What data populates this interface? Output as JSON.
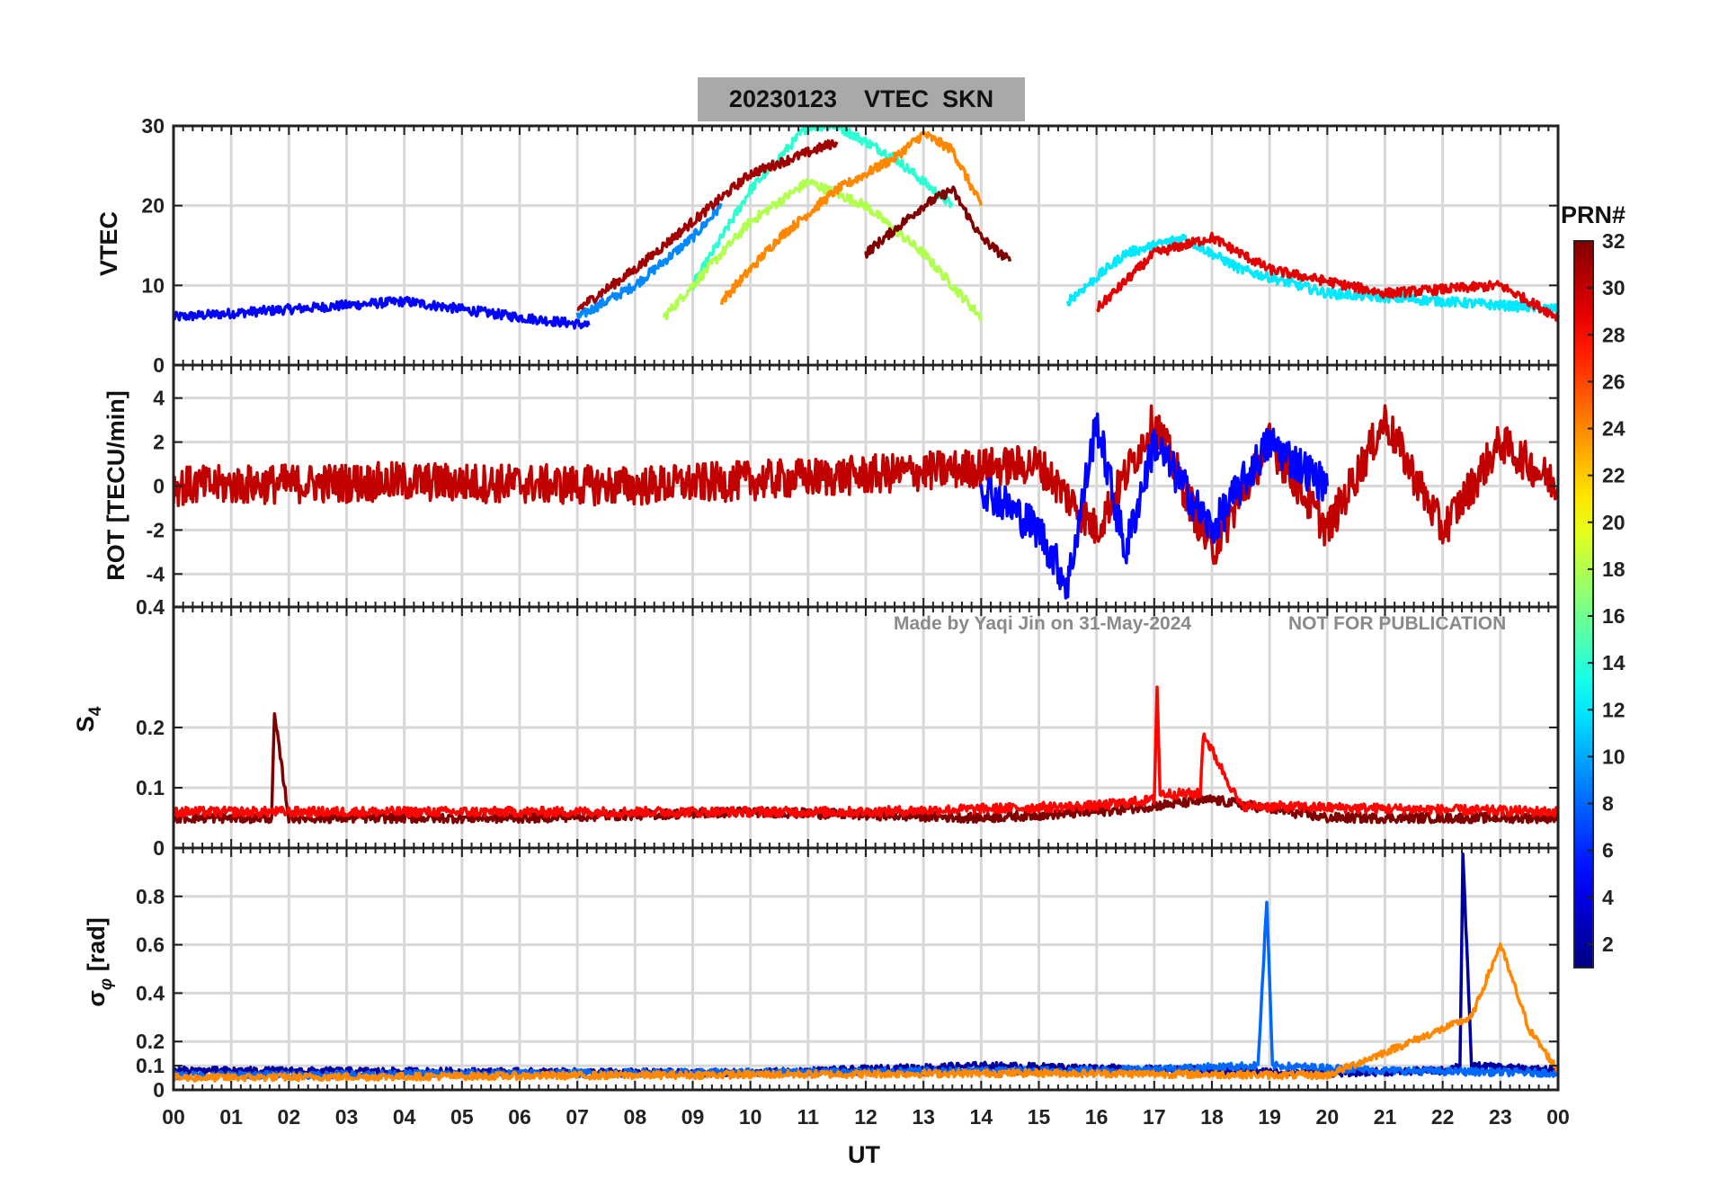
{
  "chart_data": [
    {
      "type": "line",
      "panel": "vtec",
      "title": "20230123    VTEC  SKN",
      "xlabel": "UT",
      "ylabel": "VTEC",
      "xlim": [
        0,
        24
      ],
      "ylim": [
        0,
        30
      ],
      "yticks": [
        0,
        10,
        20,
        30
      ],
      "ytick_labels": [
        "0",
        "10",
        "20",
        "30"
      ],
      "grid": true,
      "series": [
        {
          "prn": 5,
          "x": [
            0,
            1,
            2,
            3,
            4,
            5,
            6,
            7.2
          ],
          "y": [
            6,
            6.5,
            7,
            7.5,
            8,
            7,
            6,
            5
          ]
        },
        {
          "prn": 9,
          "x": [
            7,
            8,
            9,
            9.5
          ],
          "y": [
            6,
            10,
            16,
            20
          ]
        },
        {
          "prn": 14,
          "x": [
            9,
            10,
            11,
            11.5,
            12.5,
            13.5
          ],
          "y": [
            10,
            22,
            30,
            30,
            26,
            20
          ]
        },
        {
          "prn": 18,
          "x": [
            8.5,
            10,
            11,
            12,
            13,
            14
          ],
          "y": [
            6,
            18,
            23,
            20,
            14,
            6
          ]
        },
        {
          "prn": 24,
          "x": [
            9.5,
            10.5,
            11.5,
            12.5,
            13,
            13.5,
            14
          ],
          "y": [
            8,
            16,
            22,
            26,
            29,
            27,
            20
          ]
        },
        {
          "prn": 31,
          "x": [
            7,
            8,
            9,
            10,
            11.5
          ],
          "y": [
            7,
            12,
            18,
            24,
            28
          ]
        },
        {
          "prn": 32,
          "x": [
            12,
            13,
            13.5,
            14,
            14.5
          ],
          "y": [
            14,
            20,
            22,
            16,
            13
          ]
        },
        {
          "prn": 12,
          "x": [
            15.5,
            16.5,
            17.5,
            18.5,
            20,
            22,
            24
          ],
          "y": [
            8,
            14,
            16,
            12,
            9,
            8,
            7
          ]
        },
        {
          "prn": 29,
          "x": [
            16,
            17,
            18,
            19,
            21,
            23,
            24
          ],
          "y": [
            7,
            14,
            16,
            12,
            9,
            10,
            6
          ]
        }
      ]
    },
    {
      "type": "line",
      "panel": "rot",
      "ylabel": "ROT [TECU/min]",
      "xlim": [
        0,
        24
      ],
      "ylim": [
        -5.5,
        5.5
      ],
      "yticks": [
        -4,
        -2,
        0,
        2,
        4
      ],
      "ytick_labels": [
        "-4",
        "-2",
        "0",
        "2",
        "4"
      ],
      "grid": true,
      "series": [
        {
          "prn": 30,
          "x": [
            0,
            4,
            8,
            12,
            15,
            16,
            17,
            18,
            19,
            20,
            21,
            22,
            23,
            24
          ],
          "y": [
            0,
            0.2,
            0,
            0.5,
            1,
            -2,
            3,
            -3,
            2,
            -2,
            3,
            -2,
            2,
            0
          ]
        },
        {
          "prn": 5,
          "x": [
            14,
            15,
            15.5,
            16,
            16.5,
            17,
            18,
            19,
            20
          ],
          "y": [
            0,
            -2,
            -4.5,
            3,
            -3,
            2,
            -2,
            2,
            0
          ]
        }
      ]
    },
    {
      "type": "line",
      "panel": "s4",
      "ylabel": "S4",
      "xlim": [
        0,
        24
      ],
      "ylim": [
        0,
        0.4
      ],
      "yticks": [
        0,
        0.1,
        0.2,
        0.4
      ],
      "ytick_labels": [
        "0",
        "0.1",
        "0.2",
        "0.4"
      ],
      "grid": true,
      "series": [
        {
          "prn": 32,
          "x": [
            0,
            1.5,
            1.7,
            1.75,
            2,
            6,
            10,
            14,
            16,
            18,
            20,
            22,
            24
          ],
          "y": [
            0.05,
            0.05,
            0.05,
            0.22,
            0.05,
            0.05,
            0.06,
            0.05,
            0.06,
            0.08,
            0.05,
            0.05,
            0.05
          ]
        },
        {
          "prn": 28,
          "x": [
            0,
            6,
            12,
            16,
            17,
            17.05,
            17.1,
            17.8,
            17.85,
            18.5,
            24
          ],
          "y": [
            0.06,
            0.06,
            0.06,
            0.07,
            0.08,
            0.27,
            0.09,
            0.09,
            0.19,
            0.07,
            0.06
          ]
        }
      ],
      "annotations": [
        "Made by Yaqi Jin on 31-May-2024",
        "NOT FOR PUBLICATION"
      ]
    },
    {
      "type": "line",
      "panel": "sigma_phi",
      "ylabel": "σ_φ [rad]",
      "xlim": [
        0,
        24
      ],
      "ylim": [
        0,
        1
      ],
      "yticks": [
        0,
        0.1,
        0.2,
        0.4,
        0.6,
        0.8
      ],
      "ytick_labels": [
        "0",
        "0.1",
        "0.2",
        "0.4",
        "0.6",
        "0.8"
      ],
      "xticks": [
        0,
        1,
        2,
        3,
        4,
        5,
        6,
        7,
        8,
        9,
        10,
        11,
        12,
        13,
        14,
        15,
        16,
        17,
        18,
        19,
        20,
        21,
        22,
        23,
        24
      ],
      "xtick_labels": [
        "00",
        "01",
        "02",
        "03",
        "04",
        "05",
        "06",
        "07",
        "08",
        "09",
        "10",
        "11",
        "12",
        "13",
        "14",
        "15",
        "16",
        "17",
        "18",
        "19",
        "20",
        "21",
        "22",
        "23",
        "00"
      ],
      "grid": true,
      "series": [
        {
          "prn": 2,
          "x": [
            0,
            10,
            14,
            20,
            22,
            22.3,
            22.35,
            22.5,
            24
          ],
          "y": [
            0.08,
            0.07,
            0.1,
            0.07,
            0.08,
            0.1,
            0.98,
            0.1,
            0.08
          ]
        },
        {
          "prn": 8,
          "x": [
            0,
            16,
            18.8,
            18.95,
            19.05,
            21,
            24
          ],
          "y": [
            0.06,
            0.08,
            0.1,
            0.78,
            0.1,
            0.08,
            0.07
          ]
        },
        {
          "prn": 24,
          "x": [
            0,
            15,
            20,
            22.5,
            23,
            23.5,
            24
          ],
          "y": [
            0.05,
            0.07,
            0.06,
            0.3,
            0.6,
            0.25,
            0.08
          ]
        }
      ]
    }
  ],
  "colorbar": {
    "label": "PRN#",
    "range": [
      1,
      32
    ],
    "ticks": [
      2,
      4,
      6,
      8,
      10,
      12,
      14,
      16,
      18,
      20,
      22,
      24,
      26,
      28,
      30,
      32
    ],
    "tick_labels": [
      "2",
      "4",
      "6",
      "8",
      "10",
      "12",
      "14",
      "16",
      "18",
      "20",
      "22",
      "24",
      "26",
      "28",
      "30",
      "32"
    ],
    "colormap": "jet",
    "colors": [
      "#00008f",
      "#0000ff",
      "#0080ff",
      "#00ffff",
      "#80ff80",
      "#ffff00",
      "#ff8000",
      "#ff0000",
      "#800000"
    ]
  }
}
